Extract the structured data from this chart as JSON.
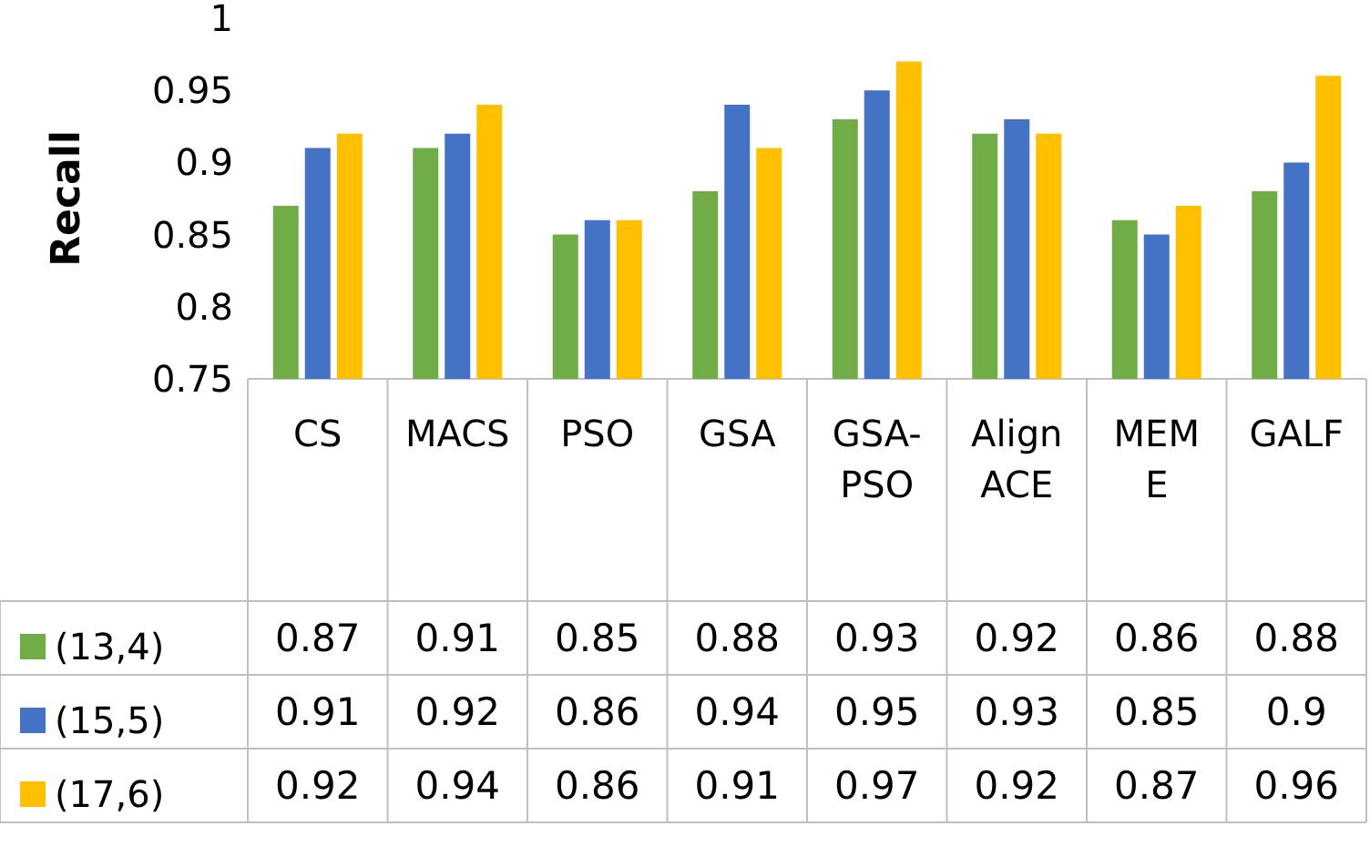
{
  "chart_data": {
    "type": "bar",
    "ylabel": "Recall",
    "categories": [
      "CS",
      "MACS",
      "PSO",
      "GSA",
      "GSA-PSO",
      "AlignACE",
      "MEME",
      "GALF"
    ],
    "series": [
      {
        "name": "(13,4)",
        "color": "#70ad47",
        "values": [
          0.87,
          0.91,
          0.85,
          0.88,
          0.93,
          0.92,
          0.86,
          0.88
        ]
      },
      {
        "name": "(15,5)",
        "color": "#4472c4",
        "values": [
          0.91,
          0.92,
          0.86,
          0.94,
          0.95,
          0.93,
          0.85,
          0.9
        ]
      },
      {
        "name": "(17,6)",
        "color": "#ffc000",
        "values": [
          0.92,
          0.94,
          0.86,
          0.91,
          0.97,
          0.92,
          0.87,
          0.96
        ]
      }
    ],
    "ylim": [
      0.75,
      1
    ],
    "yticks": [
      0.75,
      0.8,
      0.85,
      0.9,
      0.95,
      1
    ],
    "grid": false,
    "legend": "bottom",
    "data_labels": true
  }
}
